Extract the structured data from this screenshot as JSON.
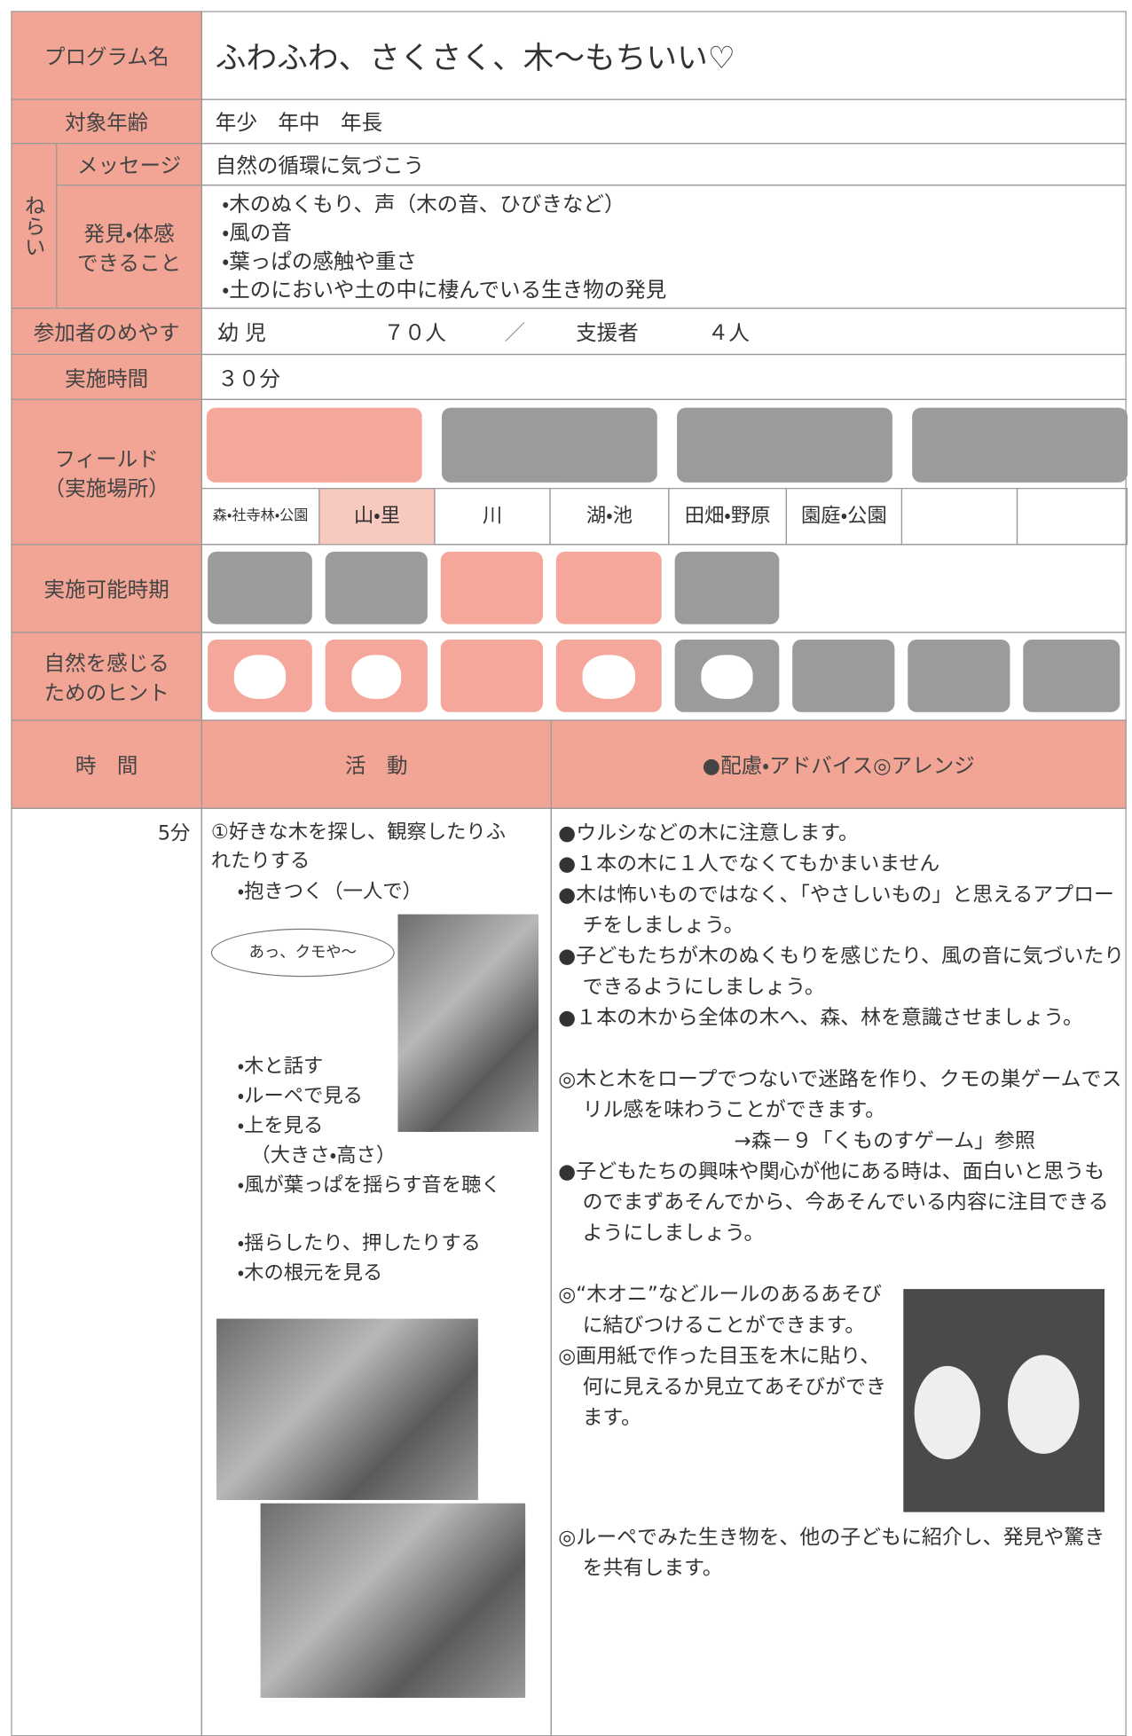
{
  "header": {
    "program_label": "プログラム名",
    "program_title": "ふわふわ、さくさく、木〜もちいい♡"
  },
  "age": {
    "label": "対象年齢",
    "value": "年少　年中　年長"
  },
  "aim": {
    "label": "ねらい",
    "message_label": "メッセージ",
    "message": "自然の循環に気づこう",
    "discovery_label": [
      "発見・体感",
      "できること"
    ],
    "discovery": [
      "・木のぬくもり、声（木の音、ひびきなど）",
      "・風の音",
      "・葉っぱの感触や重さ",
      "・土のにおいや土の中に棲んでいる生き物の発見"
    ]
  },
  "participants": {
    "label": "参加者のめやす",
    "children_label": "幼 児",
    "children": "７０人",
    "separator": "／",
    "supporters_label": "支援者",
    "supporters": "４人"
  },
  "duration": {
    "label": "実施時間",
    "value": "３０分"
  },
  "field": {
    "label": [
      "フィールド",
      "（実施場所）"
    ],
    "places": [
      "森・社寺林・公園",
      "山・里",
      "川",
      "湖・池",
      "田畑・野原",
      "園庭・公園"
    ]
  },
  "season": {
    "label": "実施可能時期"
  },
  "hints": {
    "label": [
      "自然を感じる",
      "ためのヒント"
    ]
  },
  "table": {
    "headers": [
      "時　間",
      "活　動",
      "●配慮・アドバイス◎アレンジ"
    ],
    "time": "5分",
    "activities": [
      "①好きな木を探し、観察したりふれたりする",
      "・抱きつく（一人で）",
      "・木と話す",
      "・ルーペで見る",
      "・上を見る",
      "（大きさ・高さ）",
      "・風が葉っぱを揺らす音を聴く",
      "・揺らしたり、押したりする",
      "・木の根元を見る"
    ],
    "speech": "あっ、クモや〜",
    "advice": [
      "●ウルシなどの木に注意します。",
      "●１本の木に１人でなくてもかまいません",
      "●木は怖いものではなく、「やさしいもの」と思えるアプローチをしましょう。",
      "●子どもたちが木のぬくもりを感じたり、風の音に気づいたりできるようにしましょう。",
      "●１本の木から全体の木へ、森、林を意識させましょう。",
      "◎木と木をロープでつないで迷路を作り、クモの巣ゲームでスリル感を味わうことができます。",
      "→森－９「くものすゲーム」参照",
      "●子どもたちの興味や関心が他にある時は、面白いと思うものでまずあそんでから、今あそんでいる内容に注目できるようにしましょう。",
      "◎“木オニ”などルールのあるあそびに結びつけることができます。",
      "◎画用紙で作った目玉を木に貼り、何に見えるか見立てあそびができます。",
      "◎ルーペでみた生き物を、他の子どもに紹介し、発見や驚きを共有します。"
    ]
  }
}
